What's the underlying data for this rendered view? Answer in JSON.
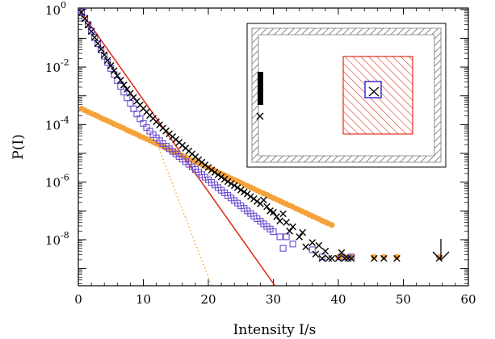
{
  "chart_data": {
    "type": "scatter",
    "title": "",
    "xlabel": "Intensity I/s",
    "ylabel": "P(I)",
    "xlim": [
      0,
      60
    ],
    "ylim_log10": [
      -9.6,
      0.05
    ],
    "y_scale": "log",
    "x_ticks": [
      0,
      10,
      20,
      30,
      40,
      50,
      60
    ],
    "y_ticks_log10": [
      0,
      -2,
      -4,
      -6,
      -8
    ],
    "y_tick_label": {
      "base": "10",
      "exponents": [
        "0",
        "-2",
        "-4",
        "-6",
        "-8"
      ]
    },
    "colors": {
      "black": "#000000",
      "orange": "#f5a23a",
      "purple": "#6a4ad0",
      "red": "#e0301e"
    },
    "series": [
      {
        "marker": "cross",
        "color": "#000000",
        "x": [
          0.5,
          1,
          1.5,
          2,
          2.5,
          3,
          3.5,
          4,
          4.5,
          5,
          5.5,
          6,
          6.5,
          7,
          7.5,
          8,
          8.5,
          9,
          9.5,
          10,
          10.5,
          11,
          11.5,
          12,
          12.5,
          13,
          13.5,
          14,
          14.5,
          15,
          15.5,
          16,
          16.5,
          17,
          17.5,
          18,
          18.5,
          19,
          19.5,
          20,
          20.5,
          21,
          21.5,
          22,
          22.5,
          23,
          23.5,
          24,
          24.5,
          25,
          25.5,
          26,
          26.5,
          27,
          27.5,
          28,
          28.5,
          29,
          29.5,
          30,
          30.5,
          31,
          31.5,
          32,
          32.5,
          33,
          34,
          34.5,
          35,
          36,
          36.5,
          37,
          37.5,
          38,
          38.5,
          39,
          40,
          40.5,
          41,
          41.5,
          42,
          45.5,
          47,
          49,
          55.5
        ],
        "log10y": [
          -0.1,
          -0.32,
          -0.54,
          -0.76,
          -0.97,
          -1.18,
          -1.38,
          -1.58,
          -1.77,
          -1.95,
          -2.13,
          -2.3,
          -2.46,
          -2.62,
          -2.77,
          -2.91,
          -3.05,
          -3.19,
          -3.32,
          -3.44,
          -3.56,
          -3.68,
          -3.79,
          -3.9,
          -4.01,
          -4.12,
          -4.22,
          -4.32,
          -4.42,
          -4.52,
          -4.62,
          -4.72,
          -4.82,
          -4.92,
          -5.02,
          -5.12,
          -5.22,
          -5.31,
          -5.4,
          -5.49,
          -5.58,
          -5.66,
          -5.74,
          -5.82,
          -5.9,
          -5.98,
          -6.05,
          -6.12,
          -6.19,
          -6.27,
          -6.34,
          -6.41,
          -6.5,
          -6.58,
          -6.67,
          -6.75,
          -6.62,
          -6.85,
          -7.0,
          -7.05,
          -7.2,
          -7.35,
          -7.1,
          -7.4,
          -7.7,
          -7.55,
          -7.9,
          -7.75,
          -8.25,
          -8.1,
          -8.5,
          -8.2,
          -8.65,
          -8.4,
          -8.65,
          -8.65,
          -8.65,
          -8.45,
          -8.65,
          -8.65,
          -8.65,
          -8.65,
          -8.65,
          -8.65,
          -8.65
        ]
      },
      {
        "marker": "circle",
        "color": "#f5a23a",
        "x": [
          0.5,
          1,
          1.5,
          2,
          2.5,
          3,
          3.5,
          4,
          4.5,
          5,
          5.5,
          6,
          6.5,
          7,
          7.5,
          8,
          8.5,
          9,
          9.5,
          10,
          10.5,
          11,
          11.5,
          12,
          12.5,
          13,
          13.5,
          14,
          14.5,
          15,
          15.5,
          16,
          16.5,
          17,
          17.5,
          18,
          18.5,
          19,
          19.5,
          20,
          20.5,
          21,
          21.5,
          22,
          22.5,
          23,
          23.5,
          24,
          24.5,
          25,
          25.5,
          26,
          26.5,
          27,
          27.5,
          28,
          28.5,
          29,
          29.5,
          30,
          30.5,
          31,
          31.5,
          32,
          32.5,
          33,
          33.5,
          34,
          34.5,
          35,
          35.5,
          36,
          36.5,
          37,
          37.5,
          38,
          38.5,
          39,
          40,
          40.5,
          41,
          41.5,
          42,
          45.5,
          47,
          49,
          55.5
        ],
        "log10y": [
          -3.45,
          -3.5,
          -3.56,
          -3.61,
          -3.66,
          -3.71,
          -3.77,
          -3.82,
          -3.87,
          -3.92,
          -3.98,
          -4.03,
          -4.08,
          -4.13,
          -4.19,
          -4.24,
          -4.29,
          -4.34,
          -4.4,
          -4.45,
          -4.5,
          -4.55,
          -4.61,
          -4.66,
          -4.71,
          -4.76,
          -4.82,
          -4.87,
          -4.92,
          -4.97,
          -5.03,
          -5.08,
          -5.13,
          -5.18,
          -5.24,
          -5.29,
          -5.34,
          -5.39,
          -5.45,
          -5.5,
          -5.55,
          -5.6,
          -5.66,
          -5.71,
          -5.76,
          -5.81,
          -5.87,
          -5.92,
          -5.97,
          -6.02,
          -6.08,
          -6.13,
          -6.18,
          -6.23,
          -6.29,
          -6.34,
          -6.39,
          -6.44,
          -6.5,
          -6.55,
          -6.6,
          -6.65,
          -6.71,
          -6.76,
          -6.81,
          -6.86,
          -6.92,
          -6.97,
          -7.02,
          -7.07,
          -7.13,
          -7.18,
          -7.23,
          -7.28,
          -7.34,
          -7.39,
          -7.44,
          -7.49,
          -8.6,
          -8.6,
          -8.6,
          -8.6,
          -8.6,
          -8.6,
          -8.6,
          -8.6,
          -8.6
        ]
      },
      {
        "marker": "square",
        "color": "#6a4ad0",
        "x": [
          0.5,
          1,
          1.5,
          2,
          2.5,
          3,
          3.5,
          4,
          4.5,
          5,
          5.5,
          6,
          6.5,
          7,
          7.5,
          8,
          8.5,
          9,
          9.5,
          10,
          10.5,
          11,
          11.5,
          12,
          12.5,
          13,
          13.5,
          14,
          14.5,
          15,
          15.5,
          16,
          16.5,
          17,
          17.5,
          18,
          18.5,
          19,
          19.5,
          20,
          20.5,
          21,
          21.5,
          22,
          22.5,
          23,
          23.5,
          24,
          24.5,
          25,
          25.5,
          26,
          26.5,
          27,
          27.5,
          28,
          28.5,
          29,
          29.5,
          30,
          31,
          31.5,
          32,
          33,
          36,
          37.5,
          40.5,
          42
        ],
        "log10y": [
          -0.08,
          -0.3,
          -0.52,
          -0.75,
          -0.97,
          -1.19,
          -1.41,
          -1.62,
          -1.84,
          -2.05,
          -2.26,
          -2.47,
          -2.67,
          -2.87,
          -3.07,
          -3.26,
          -3.45,
          -3.63,
          -3.8,
          -3.96,
          -4.1,
          -4.23,
          -4.35,
          -4.46,
          -4.56,
          -4.66,
          -4.75,
          -4.84,
          -4.93,
          -5.02,
          -5.11,
          -5.2,
          -5.29,
          -5.38,
          -5.47,
          -5.56,
          -5.65,
          -5.74,
          -5.83,
          -5.92,
          -6.01,
          -6.1,
          -6.19,
          -6.28,
          -6.37,
          -6.46,
          -6.55,
          -6.64,
          -6.73,
          -6.82,
          -6.91,
          -7.0,
          -7.09,
          -7.18,
          -7.27,
          -7.36,
          -7.45,
          -7.54,
          -7.63,
          -7.72,
          -7.9,
          -8.3,
          -7.9,
          -8.15,
          -8.35,
          -8.6,
          -8.6,
          -8.6
        ]
      }
    ],
    "lines": [
      {
        "style": "solid",
        "color": "#e0301e",
        "x": [
          0,
          31.5
        ],
        "log10y": [
          0.05,
          -10.0
        ]
      },
      {
        "style": "dotted",
        "color": "#f5a23a",
        "x": [
          12,
          20.5
        ],
        "log10y": [
          -4.6,
          -9.6
        ]
      }
    ],
    "inset": {
      "outer_box": "gray-hatched frame",
      "red_region": "red-hatched rectangle",
      "blue_square": "open blue square",
      "markers": "black crosses along the left wall"
    },
    "annotation": {
      "arrow": "down arrow above x ≈ 55.5"
    }
  }
}
